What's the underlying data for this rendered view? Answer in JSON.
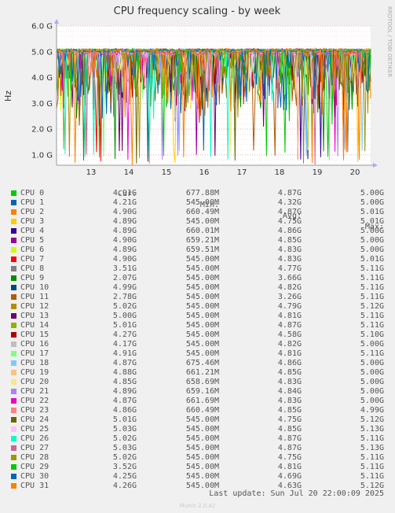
{
  "chart_data": {
    "type": "line",
    "title": "CPU frequency scaling - by week",
    "ylabel": "Hz",
    "vertical_label": "RRDTOOL / TOBI OETIKER",
    "yticks": [
      "1.0 G",
      "2.0 G",
      "3.0 G",
      "4.0 G",
      "5.0 G",
      "6.0 G"
    ],
    "ylim": [
      0.6,
      6.0
    ],
    "xticks": [
      "13",
      "14",
      "15",
      "16",
      "17",
      "18",
      "19",
      "20"
    ],
    "grid": true,
    "legend_headers": {
      "cur": "Cur:",
      "min": "Min:",
      "avg": "Avg:",
      "max": "Max:"
    },
    "series": [
      {
        "name": "CPU 0",
        "color": "#00cc00",
        "cur": "4.91G",
        "min": "677.88M",
        "avg": "4.87G",
        "max": "5.00G"
      },
      {
        "name": "CPU 1",
        "color": "#0066b3",
        "cur": "4.21G",
        "min": "545.00M",
        "avg": "4.32G",
        "max": "5.00G"
      },
      {
        "name": "CPU 2",
        "color": "#ff8000",
        "cur": "4.90G",
        "min": "660.49M",
        "avg": "4.87G",
        "max": "5.01G"
      },
      {
        "name": "CPU 3",
        "color": "#ffcc00",
        "cur": "4.89G",
        "min": "545.00M",
        "avg": "4.75G",
        "max": "5.01G"
      },
      {
        "name": "CPU 4",
        "color": "#330099",
        "cur": "4.89G",
        "min": "660.01M",
        "avg": "4.86G",
        "max": "5.00G"
      },
      {
        "name": "CPU 5",
        "color": "#990099",
        "cur": "4.90G",
        "min": "659.21M",
        "avg": "4.85G",
        "max": "5.00G"
      },
      {
        "name": "CPU 6",
        "color": "#ccff00",
        "cur": "4.89G",
        "min": "659.51M",
        "avg": "4.83G",
        "max": "5.00G"
      },
      {
        "name": "CPU 7",
        "color": "#ff0000",
        "cur": "4.90G",
        "min": "545.00M",
        "avg": "4.83G",
        "max": "5.01G"
      },
      {
        "name": "CPU 8",
        "color": "#808080",
        "cur": "3.51G",
        "min": "545.00M",
        "avg": "4.77G",
        "max": "5.11G"
      },
      {
        "name": "CPU 9",
        "color": "#008f00",
        "cur": "2.07G",
        "min": "545.00M",
        "avg": "3.66G",
        "max": "5.11G"
      },
      {
        "name": "CPU 10",
        "color": "#00487d",
        "cur": "4.99G",
        "min": "545.00M",
        "avg": "4.82G",
        "max": "5.11G"
      },
      {
        "name": "CPU 11",
        "color": "#b35a00",
        "cur": "2.78G",
        "min": "545.00M",
        "avg": "3.26G",
        "max": "5.11G"
      },
      {
        "name": "CPU 12",
        "color": "#b38f00",
        "cur": "5.02G",
        "min": "545.00M",
        "avg": "4.79G",
        "max": "5.12G"
      },
      {
        "name": "CPU 13",
        "color": "#6b006b",
        "cur": "5.00G",
        "min": "545.00M",
        "avg": "4.81G",
        "max": "5.11G"
      },
      {
        "name": "CPU 14",
        "color": "#8fb300",
        "cur": "5.01G",
        "min": "545.00M",
        "avg": "4.87G",
        "max": "5.11G"
      },
      {
        "name": "CPU 15",
        "color": "#b30000",
        "cur": "4.27G",
        "min": "545.00M",
        "avg": "4.58G",
        "max": "5.10G"
      },
      {
        "name": "CPU 16",
        "color": "#bebebe",
        "cur": "4.17G",
        "min": "545.00M",
        "avg": "4.82G",
        "max": "5.00G"
      },
      {
        "name": "CPU 17",
        "color": "#80ff80",
        "cur": "4.91G",
        "min": "545.00M",
        "avg": "4.81G",
        "max": "5.11G"
      },
      {
        "name": "CPU 18",
        "color": "#80c9ff",
        "cur": "4.87G",
        "min": "675.46M",
        "avg": "4.86G",
        "max": "5.00G"
      },
      {
        "name": "CPU 19",
        "color": "#ffc080",
        "cur": "4.88G",
        "min": "661.21M",
        "avg": "4.85G",
        "max": "5.00G"
      },
      {
        "name": "CPU 20",
        "color": "#ffe680",
        "cur": "4.85G",
        "min": "658.69M",
        "avg": "4.83G",
        "max": "5.00G"
      },
      {
        "name": "CPU 21",
        "color": "#aa80ff",
        "cur": "4.89G",
        "min": "659.16M",
        "avg": "4.84G",
        "max": "5.00G"
      },
      {
        "name": "CPU 22",
        "color": "#ee00cc",
        "cur": "4.87G",
        "min": "661.69M",
        "avg": "4.83G",
        "max": "5.00G"
      },
      {
        "name": "CPU 23",
        "color": "#ff8080",
        "cur": "4.86G",
        "min": "660.49M",
        "avg": "4.85G",
        "max": "4.99G"
      },
      {
        "name": "CPU 24",
        "color": "#666600",
        "cur": "5.01G",
        "min": "545.00M",
        "avg": "4.75G",
        "max": "5.12G"
      },
      {
        "name": "CPU 25",
        "color": "#ffbfff",
        "cur": "5.03G",
        "min": "545.00M",
        "avg": "4.85G",
        "max": "5.13G"
      },
      {
        "name": "CPU 26",
        "color": "#00ffcc",
        "cur": "5.02G",
        "min": "545.00M",
        "avg": "4.87G",
        "max": "5.11G"
      },
      {
        "name": "CPU 27",
        "color": "#cc6699",
        "cur": "5.03G",
        "min": "545.00M",
        "avg": "4.87G",
        "max": "5.13G"
      },
      {
        "name": "CPU 28",
        "color": "#999900",
        "cur": "5.02G",
        "min": "545.00M",
        "avg": "4.75G",
        "max": "5.11G"
      },
      {
        "name": "CPU 29",
        "color": "#00cc00",
        "cur": "3.52G",
        "min": "545.00M",
        "avg": "4.81G",
        "max": "5.11G"
      },
      {
        "name": "CPU 30",
        "color": "#0066b3",
        "cur": "4.25G",
        "min": "545.00M",
        "avg": "4.69G",
        "max": "5.11G"
      },
      {
        "name": "CPU 31",
        "color": "#ff8000",
        "cur": "4.26G",
        "min": "545.00M",
        "avg": "4.63G",
        "max": "5.12G"
      }
    ]
  },
  "footer": {
    "last_update": "Last update: Sun Jul 20 22:00:09 2025"
  },
  "version": "Munin 2.0.42"
}
